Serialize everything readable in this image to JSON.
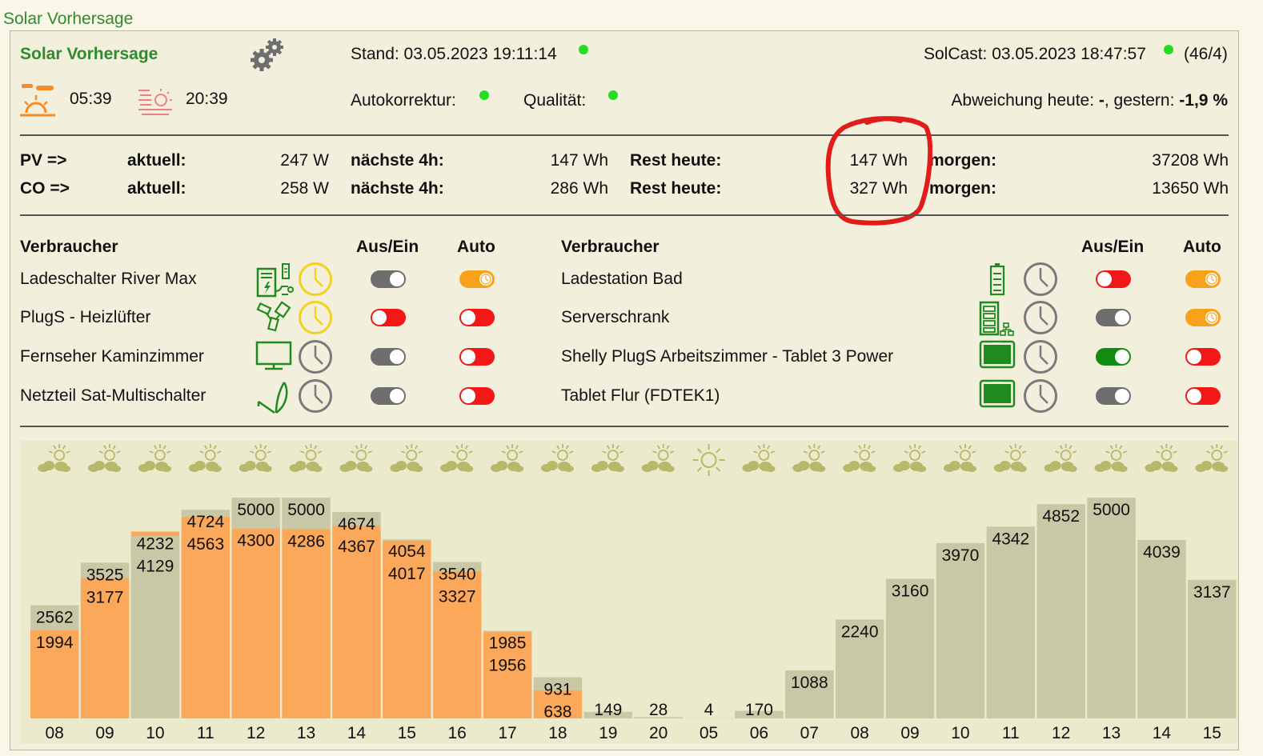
{
  "page_title": "Solar Vorhersage",
  "header": {
    "title": "Solar Vorhersage",
    "stand": "Stand: 03.05.2023 19:11:14",
    "solcast": "SolCast: 03.05.2023 18:47:57",
    "solcast_count": "(46/4)",
    "sunrise": "05:39",
    "sunset": "20:39",
    "autokorrektur_label": "Autokorrektur:",
    "qualitaet_label": "Qualität:",
    "abweichung_label": "Abweichung heute:",
    "abweichung_heute": "-",
    "gestern_label": ", gestern:",
    "abweichung_gestern": "-1,9 %",
    "status_color": "#22dd22"
  },
  "summary": {
    "rows": [
      {
        "label": "PV =>",
        "aktuell_label": "aktuell:",
        "aktuell": "247 W",
        "next4h_label": "nächste 4h:",
        "next4h": "147 Wh",
        "rest_label": "Rest heute:",
        "rest": "147 Wh",
        "morgen_label": "morgen:",
        "morgen": "37208 Wh"
      },
      {
        "label": "CO =>",
        "aktuell_label": "aktuell:",
        "aktuell": "258 W",
        "next4h_label": "nächste 4h:",
        "next4h": "286 Wh",
        "rest_label": "Rest heute:",
        "rest": "327 Wh",
        "morgen_label": "morgen:",
        "morgen": "13650 Wh"
      }
    ],
    "highlight_color": "#e21b1b"
  },
  "consumers": {
    "col_header": "Verbraucher",
    "onoff_header": "Aus/Ein",
    "auto_header": "Auto",
    "left": [
      {
        "name": "Ladeschalter River Max",
        "icon": "charger-icon",
        "clock": "yellow",
        "onoff": "off-grey",
        "auto": "auto"
      },
      {
        "name": "PlugS - Heizlüfter",
        "icon": "plug-icon",
        "clock": "yellow",
        "onoff": "off-red",
        "auto": "off-red"
      },
      {
        "name": "Fernseher Kaminzimmer",
        "icon": "tv-icon",
        "clock": "grey",
        "onoff": "off-grey",
        "auto": "off-red"
      },
      {
        "name": "Netzteil Sat-Multischalter",
        "icon": "satellite-icon",
        "clock": "grey",
        "onoff": "off-grey",
        "auto": "off-red"
      }
    ],
    "right": [
      {
        "name": "Ladestation Bad",
        "icon": "battery-icon",
        "clock": "grey",
        "onoff": "off-red",
        "auto": "auto"
      },
      {
        "name": "Serverschrank",
        "icon": "server-icon",
        "clock": "grey",
        "onoff": "off-grey",
        "auto": "auto"
      },
      {
        "name": "Shelly PlugS Arbeitszimmer - Tablet 3 Power",
        "icon": "tablet-icon",
        "clock": "grey",
        "onoff": "on-green",
        "auto": "off-red"
      },
      {
        "name": "Tablet Flur (FDTEK1)",
        "icon": "tablet-icon",
        "clock": "grey",
        "onoff": "off-grey",
        "auto": "off-red"
      }
    ]
  },
  "chart_data": {
    "type": "bar",
    "categories": [
      "08",
      "09",
      "10",
      "11",
      "12",
      "13",
      "14",
      "15",
      "16",
      "17",
      "18",
      "19",
      "20",
      "05",
      "06",
      "07",
      "08",
      "09",
      "10",
      "11",
      "12",
      "13",
      "14",
      "15"
    ],
    "series": [
      {
        "values": [
          2562,
          3525,
          4129,
          4724,
          5000,
          5000,
          4674,
          4054,
          3540,
          1985,
          931,
          149,
          28,
          4,
          170,
          1088,
          2240,
          3160,
          3970,
          4342,
          4852,
          5000,
          4039,
          3137
        ]
      },
      {
        "values": [
          1994,
          3177,
          4232,
          4563,
          4300,
          4286,
          4367,
          4017,
          3327,
          1956,
          638,
          null,
          null,
          null,
          null,
          null,
          null,
          null,
          null,
          null,
          null,
          null,
          null,
          null
        ]
      }
    ],
    "weather_icons": [
      "sun-cloud-icon",
      "sun-cloud-icon",
      "sun-cloud-icon",
      "sun-cloud-icon",
      "sun-cloud-icon",
      "sun-cloud-icon",
      "sun-cloud-icon",
      "sun-cloud-icon",
      "sun-cloud-icon",
      "sun-cloud-icon",
      "sun-cloud-icon",
      "sun-cloud-icon",
      "sun-cloud-icon",
      "sun-icon",
      "sun-cloud-icon",
      "sun-cloud-icon",
      "sun-cloud-icon",
      "sun-cloud-icon",
      "sun-cloud-icon",
      "sun-cloud-icon",
      "sun-cloud-icon",
      "sun-cloud-icon",
      "sun-cloud-icon",
      "sun-cloud-icon"
    ],
    "highlight_category_index": 11,
    "ylim": [
      0,
      5000
    ],
    "colors": {
      "forecast": "#c8c8a6",
      "actual": "#fca85a",
      "highlight_label": "#e21b1b"
    }
  }
}
